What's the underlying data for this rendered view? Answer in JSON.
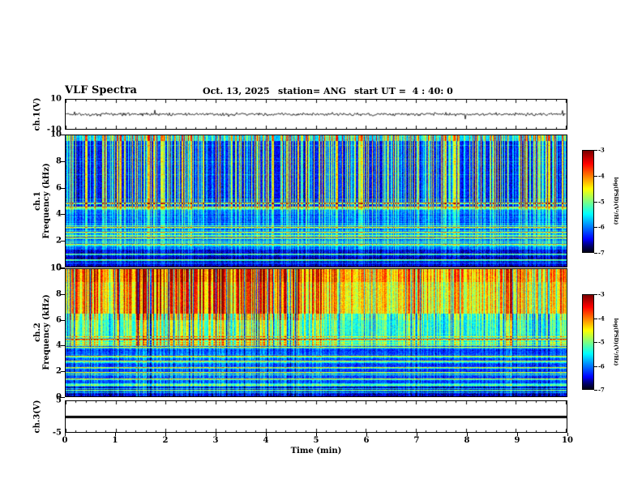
{
  "header": {
    "title": "VLF Spectra",
    "date": "Oct. 13, 2025",
    "station": "station= ANG",
    "start_ut": "start UT =  4 : 40: 0"
  },
  "xaxis": {
    "label": "Time (min)",
    "range_min": [
      0,
      10
    ],
    "ticks": [
      0,
      1,
      2,
      3,
      4,
      5,
      6,
      7,
      8,
      9,
      10
    ]
  },
  "colorbar": {
    "label": "log(PSD)(V²/Hz)",
    "range": [
      -7,
      -3
    ],
    "ticks": [
      -3,
      -4,
      -5,
      -6,
      -7
    ]
  },
  "chart_data": [
    {
      "type": "line",
      "name": "ch1 waveform",
      "ylabel": "ch.1(V)",
      "ylim": [
        -10,
        10
      ],
      "yticks": [
        10,
        -10
      ],
      "x_minutes": [
        0,
        10
      ],
      "description": "Continuous noisy voltage trace centered on 0 V with roughly ±2 V fluctuations and occasional larger spikes over the full 10 minutes"
    },
    {
      "type": "heatmap",
      "name": "ch1 spectrogram",
      "ylabel": "ch.1 Frequency (kHz)",
      "ylabel_lines": [
        "ch.1",
        "Frequency (kHz)"
      ],
      "ylim_khz": [
        0,
        10
      ],
      "yticks": [
        10,
        8,
        6,
        4,
        2,
        0
      ],
      "x_minutes": [
        0,
        10
      ],
      "colorbar_label": "log(PSD)(V²/Hz)",
      "colorbar_range": [
        -7,
        -3
      ],
      "background_psd": -6.6,
      "features": {
        "vertical_streaks": "dense impulsive blue-green-cyan vertical streaks, strongest above ~4.5 kHz, spanning the whole time axis",
        "horizontal_lines_khz": [
          4.85,
          4.55,
          3.0,
          2.65,
          2.2,
          1.75,
          1.0,
          0.55
        ],
        "streak_peak_psd": -4.0
      }
    },
    {
      "type": "heatmap",
      "name": "ch2 spectrogram",
      "ylabel": "ch.2 Frequency (kHz)",
      "ylabel_lines": [
        "ch.2",
        "Frequency (kHz)"
      ],
      "ylim_khz": [
        0,
        10
      ],
      "yticks": [
        10,
        8,
        6,
        4,
        2,
        0
      ],
      "x_minutes": [
        0,
        10
      ],
      "colorbar_label": "log(PSD)(V²/Hz)",
      "colorbar_range": [
        -7,
        -3
      ],
      "background_psd": -6.4,
      "features": {
        "vertical_streaks": "intense yellow-orange-red streaks above ~6 kHz, green/yellow 4-6 kHz, blue below 4 kHz",
        "horizontal_lines_khz": [
          4.5,
          3.9,
          3.2,
          2.8,
          2.3,
          1.9,
          1.4,
          0.9,
          0.5
        ],
        "streak_peak_psd": -3.0
      }
    },
    {
      "type": "line",
      "name": "ch3 waveform",
      "ylabel": "ch.3(V)",
      "ylim": [
        -5,
        5
      ],
      "yticks": [
        5,
        -5
      ],
      "x_minutes": [
        0,
        10
      ],
      "value": 0,
      "description": "Flat constant thick line at 0 V"
    }
  ]
}
